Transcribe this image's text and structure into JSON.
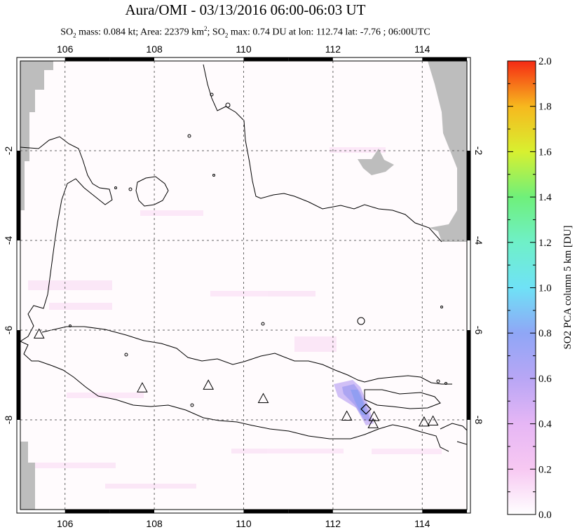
{
  "header": {
    "title": "Aura/OMI - 03/13/2016 06:00-06:03 UT",
    "subtitle_parts": {
      "so2": "SO",
      "so2_sub": "2",
      "mass_text": " mass: 0.084 kt; Area: 22379 km",
      "area_sup": "2",
      "max_text": "; SO",
      "max_sub": "2",
      "rest": " max: 0.74 DU at lon: 112.74 lat: -7.76 ; 06:00UTC"
    }
  },
  "map": {
    "lon_ticks": [
      "106",
      "108",
      "110",
      "112",
      "114"
    ],
    "lat_ticks": [
      "-2",
      "-4",
      "-6",
      "-8"
    ],
    "lon_range": [
      105,
      115
    ],
    "lat_range": [
      -10,
      0
    ],
    "volcanoes": [
      {
        "lon": 105.42,
        "lat": -6.1
      },
      {
        "lon": 107.73,
        "lat": -7.3
      },
      {
        "lon": 109.21,
        "lat": -7.24
      },
      {
        "lon": 110.44,
        "lat": -7.54
      },
      {
        "lon": 112.31,
        "lat": -7.93
      },
      {
        "lon": 112.92,
        "lat": -7.94
      },
      {
        "lon": 112.9,
        "lat": -8.1
      },
      {
        "lon": 114.04,
        "lat": -8.06
      },
      {
        "lon": 114.24,
        "lat": -8.04
      }
    ],
    "max_marker": {
      "lon": 112.74,
      "lat": -7.76
    }
  },
  "colorbar": {
    "label": "SO2 PCA column 5 km [DU]",
    "ticks": [
      "0.0",
      "0.2",
      "0.4",
      "0.6",
      "0.8",
      "1.0",
      "1.2",
      "1.4",
      "1.6",
      "1.8",
      "2.0"
    ],
    "colors": [
      "#ffffff",
      "#f7c8f2",
      "#d2a8f5",
      "#a9a0f5",
      "#7fb6f6",
      "#6ff0f6",
      "#6ff0a8",
      "#7ff06a",
      "#f2f02a",
      "#f7a91e",
      "#f52a14"
    ]
  }
}
